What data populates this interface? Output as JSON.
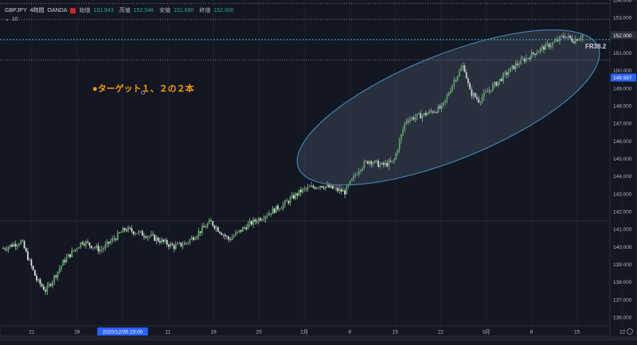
{
  "header": {
    "symbol": "GBPJPY",
    "timeframe": "4時間",
    "exchange": "OANDA",
    "ohlc": [
      {
        "label": "始値",
        "value": "151.943"
      },
      {
        "label": "高値",
        "value": "152.046"
      },
      {
        "label": "安値",
        "value": "151.890"
      },
      {
        "label": "終値",
        "value": "152.000"
      }
    ],
    "indicator": "10"
  },
  "annotation": "●ターゲット１、２の２本",
  "fr_label": "FR38.2",
  "colors": {
    "background": "#131722",
    "up": "#26a69a",
    "candle_body": "#4caf50",
    "wick": "#e0e0e0",
    "annotation": "#ff9800",
    "ellipse": "#4d5a6e"
  },
  "chart_data": {
    "type": "candlestick",
    "symbol": "GBPJPY",
    "ylim": [
      135.5,
      154.0
    ],
    "y_ticks": [
      "154.000",
      "153.000",
      "152.000",
      "151.000",
      "150.000",
      "149.000",
      "148.000",
      "147.000",
      "146.000",
      "145.000",
      "144.000",
      "143.000",
      "142.000",
      "141.000",
      "140.000",
      "139.000",
      "138.000",
      "137.000",
      "136.000"
    ],
    "current_price": "152.000",
    "marked_price": "149.597",
    "x_ticks": [
      "21",
      "28",
      "2020/12/30 23:00",
      "11",
      "18",
      "25",
      "2月",
      "8",
      "15",
      "22",
      "3月",
      "8",
      "15",
      "22"
    ],
    "horizontal_lines": [
      {
        "price": 153.8,
        "style": "dotted"
      },
      {
        "price": 152.9,
        "style": "dotted"
      },
      {
        "price": 151.75,
        "style": "dashed",
        "label": "FR38.2"
      },
      {
        "price": 150.6,
        "style": "dotted"
      },
      {
        "price": 141.45,
        "style": "solid"
      }
    ],
    "path_anchors": [
      [
        0,
        139.9
      ],
      [
        0.03,
        140.3
      ],
      [
        0.055,
        138.1
      ],
      [
        0.07,
        137.5
      ],
      [
        0.1,
        139.2
      ],
      [
        0.13,
        140.3
      ],
      [
        0.16,
        139.8
      ],
      [
        0.2,
        141.0
      ],
      [
        0.24,
        140.6
      ],
      [
        0.28,
        140.0
      ],
      [
        0.3,
        140.2
      ],
      [
        0.34,
        141.4
      ],
      [
        0.37,
        140.4
      ],
      [
        0.4,
        141.2
      ],
      [
        0.43,
        141.8
      ],
      [
        0.46,
        142.4
      ],
      [
        0.49,
        143.2
      ],
      [
        0.52,
        143.5
      ],
      [
        0.56,
        143.1
      ],
      [
        0.585,
        144.5
      ],
      [
        0.6,
        144.9
      ],
      [
        0.62,
        144.6
      ],
      [
        0.64,
        144.8
      ],
      [
        0.66,
        147.2
      ],
      [
        0.69,
        147.5
      ],
      [
        0.72,
        147.9
      ],
      [
        0.74,
        149.5
      ],
      [
        0.755,
        150.3
      ],
      [
        0.765,
        148.8
      ],
      [
        0.78,
        148.3
      ],
      [
        0.8,
        149.0
      ],
      [
        0.84,
        150.3
      ],
      [
        0.88,
        151.2
      ],
      [
        0.905,
        151.6
      ],
      [
        0.92,
        152.0
      ],
      [
        0.935,
        151.7
      ],
      [
        0.95,
        152.0
      ]
    ],
    "ellipse": {
      "cx": 0.735,
      "cy": 147.9,
      "rx": 0.265,
      "ry": 7.4,
      "angle": -22
    }
  }
}
